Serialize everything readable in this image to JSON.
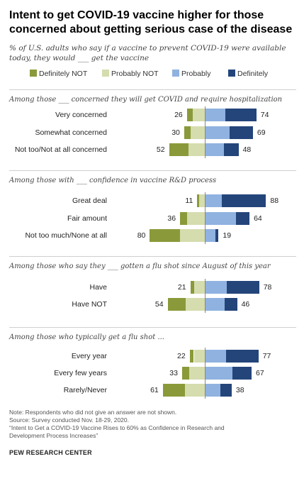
{
  "title": "Intent to get COVID-19 vaccine higher for those concerned about getting serious case of the disease",
  "subtitle": "% of U.S. adults who say if a vaccine to prevent COVID-19 were available today, they would ___ get the vaccine",
  "legend": [
    {
      "label": "Definitely NOT",
      "color": "#8a9a3a"
    },
    {
      "label": "Probably NOT",
      "color": "#d5dcae"
    },
    {
      "label": "Probably",
      "color": "#8fb2e0"
    },
    {
      "label": "Definitely",
      "color": "#24457a"
    }
  ],
  "notes": {
    "note": "Note: Respondents who did not give an answer are not shown.",
    "source": "Source: Survey conducted Nov. 18-29, 2020.",
    "report_line1": "“Intent to Get a COVID-19 Vaccine Rises to 60% as Confidence in Research and",
    "report_line2": "Development Process Increases”",
    "org": "PEW RESEARCH CENTER"
  },
  "chart_data": {
    "type": "bar",
    "orientation": "horizontal-diverging",
    "series_names": [
      "Definitely NOT",
      "Probably NOT",
      "Probably",
      "Definitely"
    ],
    "colors": [
      "#8a9a3a",
      "#d5dcae",
      "#8fb2e0",
      "#24457a"
    ],
    "sections": [
      {
        "label": "Among those ___ concerned they will get COVID and require hospitalization",
        "rows": [
          {
            "category": "Very concerned",
            "net_not": 26,
            "net_yes": 74,
            "definitely_not": 8,
            "probably_not": 18,
            "probably": 29,
            "definitely": 45
          },
          {
            "category": "Somewhat concerned",
            "net_not": 30,
            "net_yes": 69,
            "definitely_not": 9,
            "probably_not": 21,
            "probably": 35,
            "definitely": 34
          },
          {
            "category": "Not too/Not at all concerned",
            "net_not": 52,
            "net_yes": 48,
            "definitely_not": 28,
            "probably_not": 24,
            "probably": 27,
            "definitely": 21
          }
        ]
      },
      {
        "label": "Among those with ___ confidence in vaccine R&D process",
        "rows": [
          {
            "category": "Great deal",
            "net_not": 11,
            "net_yes": 88,
            "definitely_not": 3,
            "probably_not": 8,
            "probably": 24,
            "definitely": 64
          },
          {
            "category": "Fair amount",
            "net_not": 36,
            "net_yes": 64,
            "definitely_not": 10,
            "probably_not": 26,
            "probably": 44,
            "definitely": 20
          },
          {
            "category": "Not too much/None at all",
            "net_not": 80,
            "net_yes": 19,
            "definitely_not": 44,
            "probably_not": 36,
            "probably": 14,
            "definitely": 5
          }
        ]
      },
      {
        "label": "Among those who say they ___ gotten a flu shot since August of this year",
        "rows": [
          {
            "category": "Have",
            "net_not": 21,
            "net_yes": 78,
            "definitely_not": 6,
            "probably_not": 15,
            "probably": 31,
            "definitely": 47
          },
          {
            "category": "Have NOT",
            "net_not": 54,
            "net_yes": 46,
            "definitely_not": 26,
            "probably_not": 28,
            "probably": 28,
            "definitely": 18
          }
        ]
      },
      {
        "label": "Among those who typically get a flu shot ...",
        "rows": [
          {
            "category": "Every year",
            "net_not": 22,
            "net_yes": 77,
            "definitely_not": 6,
            "probably_not": 16,
            "probably": 30,
            "definitely": 47
          },
          {
            "category": "Every few years",
            "net_not": 33,
            "net_yes": 67,
            "definitely_not": 10,
            "probably_not": 23,
            "probably": 39,
            "definitely": 28
          },
          {
            "category": "Rarely/Never",
            "net_not": 61,
            "net_yes": 38,
            "definitely_not": 32,
            "probably_not": 29,
            "probably": 22,
            "definitely": 16
          }
        ]
      }
    ]
  }
}
